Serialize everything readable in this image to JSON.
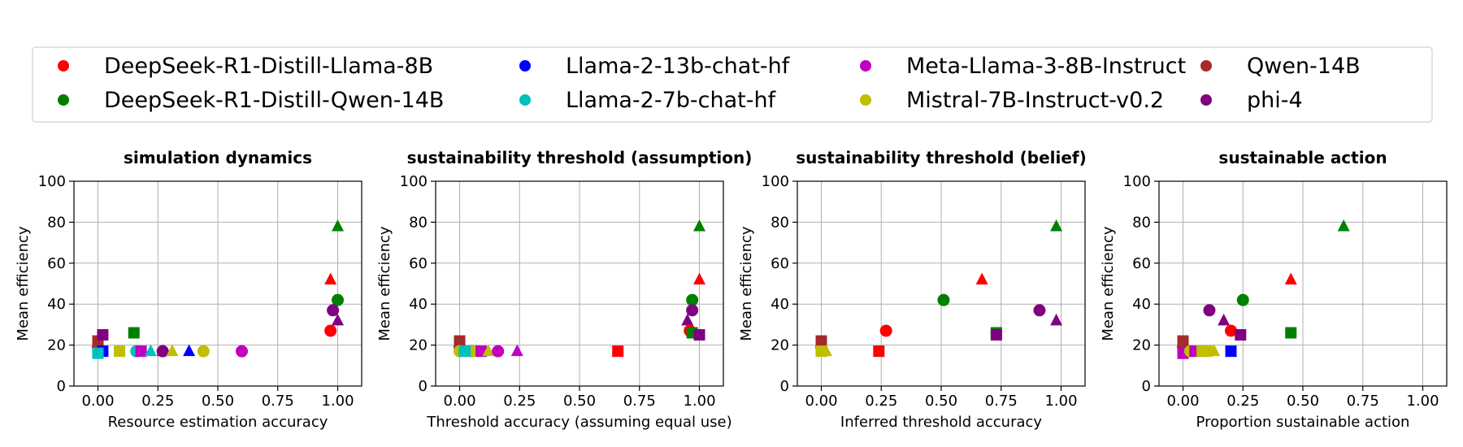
{
  "legend": {
    "entries": [
      {
        "name": "DeepSeek-R1-Distill-Llama-8B",
        "color": "#ff0000"
      },
      {
        "name": "Llama-2-13b-chat-hf",
        "color": "#0000ff"
      },
      {
        "name": "Meta-Llama-3-8B-Instruct",
        "color": "#bf00bf"
      },
      {
        "name": "Qwen-14B",
        "color": "#a52a2a"
      },
      {
        "name": "DeepSeek-R1-Distill-Qwen-14B",
        "color": "#008000"
      },
      {
        "name": "Llama-2-7b-chat-hf",
        "color": "#00bfbf"
      },
      {
        "name": "Mistral-7B-Instruct-v0.2",
        "color": "#bfbf00"
      },
      {
        "name": "phi-4",
        "color": "#800080"
      }
    ]
  },
  "chart_data": [
    {
      "type": "scatter",
      "title": "simulation dynamics",
      "xlabel": "Resource estimation accuracy",
      "ylabel": "Mean efficiency",
      "xlim": [
        -0.1,
        1.1
      ],
      "ylim": [
        0,
        100
      ],
      "xticks": [
        "0.00",
        "0.25",
        "0.50",
        "0.75",
        "1.00"
      ],
      "yticks": [
        "0",
        "20",
        "40",
        "60",
        "80",
        "100"
      ],
      "grid": true,
      "points": [
        {
          "x": 0.0,
          "y": 22,
          "marker": "square",
          "color": "#a52a2a"
        },
        {
          "x": 0.0,
          "y": 19,
          "marker": "circle",
          "color": "#a52a2a"
        },
        {
          "x": 0.0,
          "y": 17,
          "marker": "triangle",
          "color": "#a52a2a"
        },
        {
          "x": 0.02,
          "y": 25,
          "marker": "square",
          "color": "#800080"
        },
        {
          "x": 0.02,
          "y": 17,
          "marker": "square",
          "color": "#0000ff"
        },
        {
          "x": 0.0,
          "y": 16,
          "marker": "square",
          "color": "#00bfbf"
        },
        {
          "x": 0.09,
          "y": 17,
          "marker": "square",
          "color": "#bfbf00"
        },
        {
          "x": 0.15,
          "y": 26,
          "marker": "square",
          "color": "#008000"
        },
        {
          "x": 0.16,
          "y": 17,
          "marker": "circle",
          "color": "#00bfbf"
        },
        {
          "x": 0.18,
          "y": 17,
          "marker": "square",
          "color": "#bf00bf"
        },
        {
          "x": 0.22,
          "y": 17,
          "marker": "triangle",
          "color": "#00bfbf"
        },
        {
          "x": 0.27,
          "y": 17,
          "marker": "circle",
          "color": "#800080"
        },
        {
          "x": 0.27,
          "y": 17,
          "marker": "triangle",
          "color": "#800080"
        },
        {
          "x": 0.31,
          "y": 17,
          "marker": "triangle",
          "color": "#bfbf00"
        },
        {
          "x": 0.38,
          "y": 17,
          "marker": "triangle",
          "color": "#0000ff"
        },
        {
          "x": 0.44,
          "y": 17,
          "marker": "circle",
          "color": "#bfbf00"
        },
        {
          "x": 0.6,
          "y": 17,
          "marker": "circle",
          "color": "#bf00bf"
        },
        {
          "x": 0.97,
          "y": 52,
          "marker": "triangle",
          "color": "#ff0000"
        },
        {
          "x": 0.97,
          "y": 27,
          "marker": "circle",
          "color": "#ff0000"
        },
        {
          "x": 1.0,
          "y": 78,
          "marker": "triangle",
          "color": "#008000"
        },
        {
          "x": 1.0,
          "y": 42,
          "marker": "circle",
          "color": "#008000"
        },
        {
          "x": 0.98,
          "y": 37,
          "marker": "circle",
          "color": "#800080"
        },
        {
          "x": 1.0,
          "y": 32,
          "marker": "triangle",
          "color": "#800080"
        }
      ]
    },
    {
      "type": "scatter",
      "title": "sustainability threshold (assumption)",
      "xlabel": "Threshold accuracy (assuming equal use)",
      "ylabel": "Mean efficiency",
      "xlim": [
        -0.1,
        1.1
      ],
      "ylim": [
        0,
        100
      ],
      "xticks": [
        "0.00",
        "0.25",
        "0.50",
        "0.75",
        "1.00"
      ],
      "yticks": [
        "0",
        "20",
        "40",
        "60",
        "80",
        "100"
      ],
      "grid": true,
      "points": [
        {
          "x": 0.0,
          "y": 22,
          "marker": "square",
          "color": "#a52a2a"
        },
        {
          "x": 0.0,
          "y": 19,
          "marker": "circle",
          "color": "#a52a2a"
        },
        {
          "x": 0.0,
          "y": 17,
          "marker": "circle",
          "color": "#bfbf00"
        },
        {
          "x": 0.02,
          "y": 17,
          "marker": "square",
          "color": "#00bfbf"
        },
        {
          "x": 0.05,
          "y": 17,
          "marker": "circle",
          "color": "#00bfbf"
        },
        {
          "x": 0.07,
          "y": 17,
          "marker": "square",
          "color": "#bfbf00"
        },
        {
          "x": 0.09,
          "y": 17,
          "marker": "square",
          "color": "#bf00bf"
        },
        {
          "x": 0.12,
          "y": 17,
          "marker": "triangle",
          "color": "#bfbf00"
        },
        {
          "x": 0.16,
          "y": 17,
          "marker": "circle",
          "color": "#bf00bf"
        },
        {
          "x": 0.24,
          "y": 17,
          "marker": "triangle",
          "color": "#bf00bf"
        },
        {
          "x": 0.66,
          "y": 17,
          "marker": "square",
          "color": "#ff0000"
        },
        {
          "x": 1.0,
          "y": 78,
          "marker": "triangle",
          "color": "#008000"
        },
        {
          "x": 1.0,
          "y": 52,
          "marker": "triangle",
          "color": "#ff0000"
        },
        {
          "x": 0.97,
          "y": 42,
          "marker": "circle",
          "color": "#008000"
        },
        {
          "x": 0.97,
          "y": 37,
          "marker": "circle",
          "color": "#800080"
        },
        {
          "x": 0.95,
          "y": 32,
          "marker": "triangle",
          "color": "#800080"
        },
        {
          "x": 0.96,
          "y": 27,
          "marker": "circle",
          "color": "#ff0000"
        },
        {
          "x": 0.97,
          "y": 26,
          "marker": "square",
          "color": "#008000"
        },
        {
          "x": 1.0,
          "y": 25,
          "marker": "square",
          "color": "#800080"
        }
      ]
    },
    {
      "type": "scatter",
      "title": "sustainability threshold (belief)",
      "xlabel": "Inferred threshold accuracy",
      "ylabel": "Mean efficiency",
      "xlim": [
        -0.1,
        1.1
      ],
      "ylim": [
        0,
        100
      ],
      "xticks": [
        "0.00",
        "0.25",
        "0.50",
        "0.75",
        "1.00"
      ],
      "yticks": [
        "0",
        "20",
        "40",
        "60",
        "80",
        "100"
      ],
      "grid": true,
      "points": [
        {
          "x": 0.0,
          "y": 22,
          "marker": "square",
          "color": "#a52a2a"
        },
        {
          "x": 0.0,
          "y": 19,
          "marker": "circle",
          "color": "#a52a2a"
        },
        {
          "x": 0.0,
          "y": 17,
          "marker": "square",
          "color": "#bfbf00"
        },
        {
          "x": 0.02,
          "y": 17,
          "marker": "triangle",
          "color": "#bfbf00"
        },
        {
          "x": 0.24,
          "y": 17,
          "marker": "square",
          "color": "#ff0000"
        },
        {
          "x": 0.27,
          "y": 27,
          "marker": "circle",
          "color": "#ff0000"
        },
        {
          "x": 0.51,
          "y": 42,
          "marker": "circle",
          "color": "#008000"
        },
        {
          "x": 0.67,
          "y": 52,
          "marker": "triangle",
          "color": "#ff0000"
        },
        {
          "x": 0.73,
          "y": 26,
          "marker": "square",
          "color": "#008000"
        },
        {
          "x": 0.73,
          "y": 25,
          "marker": "square",
          "color": "#800080"
        },
        {
          "x": 0.91,
          "y": 37,
          "marker": "circle",
          "color": "#800080"
        },
        {
          "x": 0.98,
          "y": 78,
          "marker": "triangle",
          "color": "#008000"
        },
        {
          "x": 0.98,
          "y": 32,
          "marker": "triangle",
          "color": "#800080"
        }
      ]
    },
    {
      "type": "scatter",
      "title": "sustainable action",
      "xlabel": "Proportion sustainable action",
      "ylabel": "Mean efficiency",
      "xlim": [
        -0.1,
        1.1
      ],
      "ylim": [
        0,
        100
      ],
      "xticks": [
        "0.00",
        "0.25",
        "0.50",
        "0.75",
        "1.00"
      ],
      "yticks": [
        "0",
        "20",
        "40",
        "60",
        "80",
        "100"
      ],
      "grid": true,
      "points": [
        {
          "x": 0.0,
          "y": 22,
          "marker": "square",
          "color": "#a52a2a"
        },
        {
          "x": 0.0,
          "y": 19,
          "marker": "circle",
          "color": "#a52a2a"
        },
        {
          "x": 0.02,
          "y": 17,
          "marker": "triangle",
          "color": "#a52a2a"
        },
        {
          "x": 0.0,
          "y": 16,
          "marker": "square",
          "color": "#bf00bf"
        },
        {
          "x": 0.03,
          "y": 17,
          "marker": "circle",
          "color": "#bfbf00"
        },
        {
          "x": 0.05,
          "y": 17,
          "marker": "square",
          "color": "#bf00bf"
        },
        {
          "x": 0.08,
          "y": 17,
          "marker": "square",
          "color": "#bfbf00"
        },
        {
          "x": 0.1,
          "y": 17,
          "marker": "square",
          "color": "#bfbf00"
        },
        {
          "x": 0.13,
          "y": 17,
          "marker": "triangle",
          "color": "#bfbf00"
        },
        {
          "x": 0.11,
          "y": 37,
          "marker": "circle",
          "color": "#800080"
        },
        {
          "x": 0.17,
          "y": 32,
          "marker": "triangle",
          "color": "#800080"
        },
        {
          "x": 0.2,
          "y": 27,
          "marker": "circle",
          "color": "#ff0000"
        },
        {
          "x": 0.2,
          "y": 17,
          "marker": "square",
          "color": "#0000ff"
        },
        {
          "x": 0.25,
          "y": 42,
          "marker": "circle",
          "color": "#008000"
        },
        {
          "x": 0.24,
          "y": 25,
          "marker": "square",
          "color": "#800080"
        },
        {
          "x": 0.45,
          "y": 52,
          "marker": "triangle",
          "color": "#ff0000"
        },
        {
          "x": 0.45,
          "y": 26,
          "marker": "square",
          "color": "#008000"
        },
        {
          "x": 0.67,
          "y": 78,
          "marker": "triangle",
          "color": "#008000"
        }
      ]
    }
  ]
}
